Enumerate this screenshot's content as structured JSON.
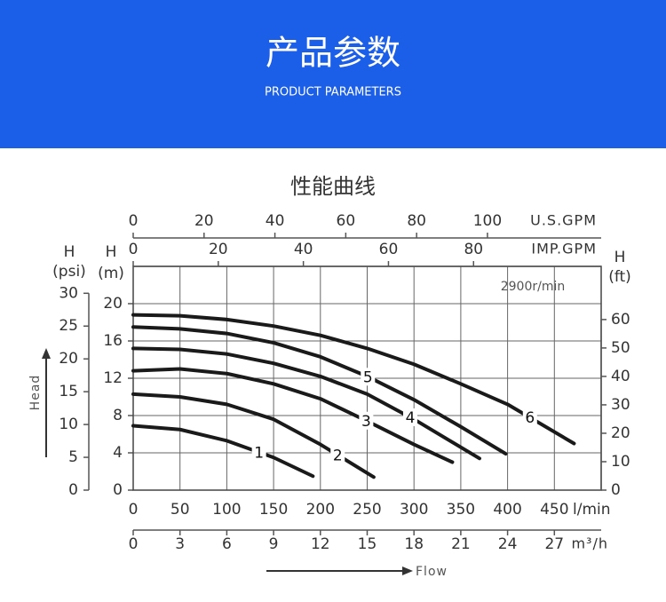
{
  "header": {
    "title": "产品参数",
    "subtitle": "PRODUCT PARAMETERS"
  },
  "chart_data": {
    "type": "line",
    "title": "性能曲线",
    "annotation": "2900r/min",
    "y_label": "Head",
    "flow_label": "Flow",
    "x_label": "l/min",
    "y_head": "H",
    "y_unit": "(m)",
    "xlim": [
      0,
      500
    ],
    "xticks": [
      0,
      50,
      100,
      150,
      200,
      250,
      300,
      350,
      400,
      450
    ],
    "ylim": [
      0,
      24
    ],
    "yticks": [
      0,
      4,
      8,
      12,
      16,
      20
    ],
    "grid": true,
    "secondary_axes": [
      {
        "position": "left",
        "head": "H",
        "unit": "(psi)",
        "lim": [
          0,
          34.1
        ],
        "ticks": [
          0,
          5,
          10,
          15,
          20,
          25,
          30
        ]
      },
      {
        "position": "right",
        "head": "H",
        "unit": "(ft)",
        "lim": [
          0,
          78.7
        ],
        "ticks": [
          0,
          10,
          20,
          30,
          40,
          50,
          60
        ]
      },
      {
        "position": "top",
        "label": "U.S.GPM",
        "lim": [
          0,
          132.1
        ],
        "ticks": [
          0,
          20,
          40,
          60,
          80,
          100
        ]
      },
      {
        "position": "top",
        "label": "IMP.GPM",
        "lim": [
          0,
          110
        ],
        "ticks": [
          0,
          20,
          40,
          60,
          80
        ]
      },
      {
        "position": "bottom",
        "label": "m³/h",
        "lim": [
          0,
          30
        ],
        "ticks": [
          0,
          3,
          6,
          9,
          12,
          15,
          18,
          21,
          24,
          27
        ]
      }
    ],
    "series": [
      {
        "name": "1",
        "color": "#1a1a1a",
        "x": [
          0,
          50,
          100,
          150,
          192
        ],
        "values": [
          6.9,
          6.5,
          5.3,
          3.5,
          1.5
        ]
      },
      {
        "name": "2",
        "color": "#1a1a1a",
        "x": [
          0,
          50,
          100,
          150,
          200,
          257
        ],
        "values": [
          10.3,
          10.0,
          9.2,
          7.6,
          4.9,
          1.4
        ]
      },
      {
        "name": "3",
        "color": "#1a1a1a",
        "x": [
          0,
          50,
          100,
          150,
          200,
          250,
          300,
          341
        ],
        "values": [
          12.8,
          13.0,
          12.5,
          11.4,
          9.8,
          7.4,
          4.9,
          3.0
        ]
      },
      {
        "name": "4",
        "color": "#1a1a1a",
        "x": [
          0,
          50,
          100,
          150,
          200,
          250,
          300,
          370
        ],
        "values": [
          15.2,
          15.1,
          14.6,
          13.6,
          12.2,
          10.3,
          7.6,
          3.4
        ]
      },
      {
        "name": "5",
        "color": "#1a1a1a",
        "x": [
          0,
          50,
          100,
          150,
          200,
          250,
          300,
          350,
          398
        ],
        "values": [
          17.5,
          17.3,
          16.8,
          15.8,
          14.3,
          12.2,
          9.7,
          6.8,
          3.9
        ]
      },
      {
        "name": "6",
        "color": "#1a1a1a",
        "x": [
          0,
          50,
          100,
          150,
          200,
          250,
          300,
          350,
          400,
          471
        ],
        "values": [
          18.8,
          18.7,
          18.3,
          17.6,
          16.6,
          15.2,
          13.5,
          11.4,
          9.2,
          5.0
        ]
      }
    ]
  }
}
